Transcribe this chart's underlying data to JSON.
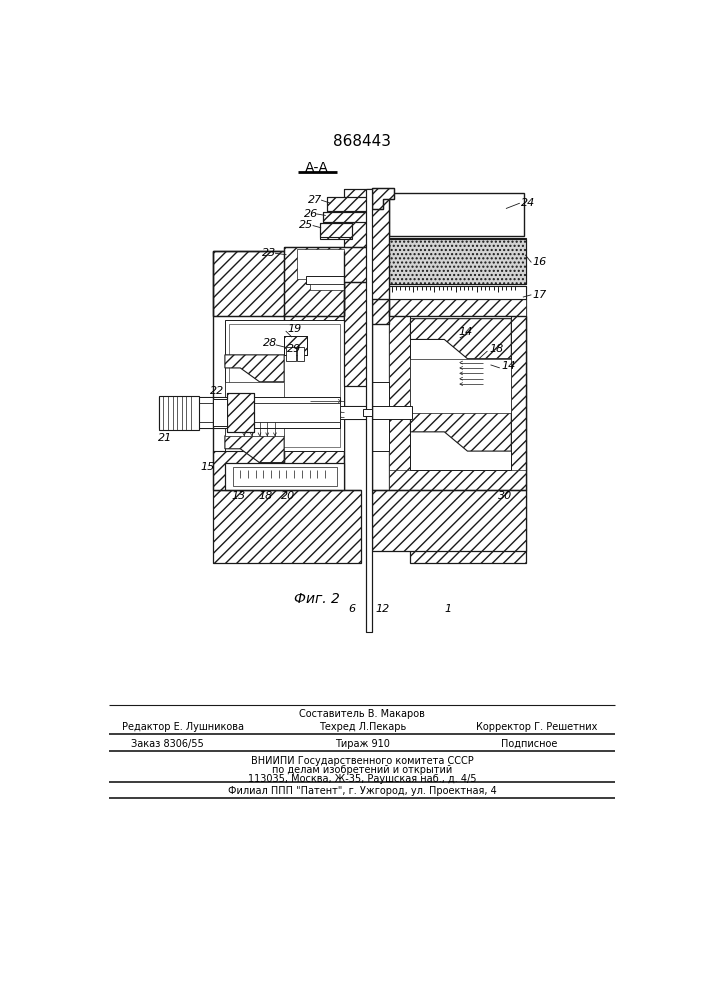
{
  "title": "868443",
  "section_label": "А-А",
  "fig_label": "Фиг. 2",
  "footer_line1": "Составитель В. Макаров",
  "footer_line2_left": "Редактор Е. Лушникова",
  "footer_line2_mid": "Техред Л.Пекарь",
  "footer_line2_right": "Корректор Г. Решетних",
  "footer_line3_left": "Заказ 8306/55",
  "footer_line3_mid": "Тираж 910",
  "footer_line3_right": "Подписное",
  "footer_line4": "ВНИИПИ Государственного комитета СССР",
  "footer_line5": "по делам изобретений и открытий",
  "footer_line6": "113035, Москва, Ж-35, Раушская наб., д. 4/5",
  "footer_line7": "Филиал ППП \"Патент\", г. Ужгород, ул. Проектная, 4",
  "bg_color": "#ffffff",
  "lc": "#1a1a1a"
}
